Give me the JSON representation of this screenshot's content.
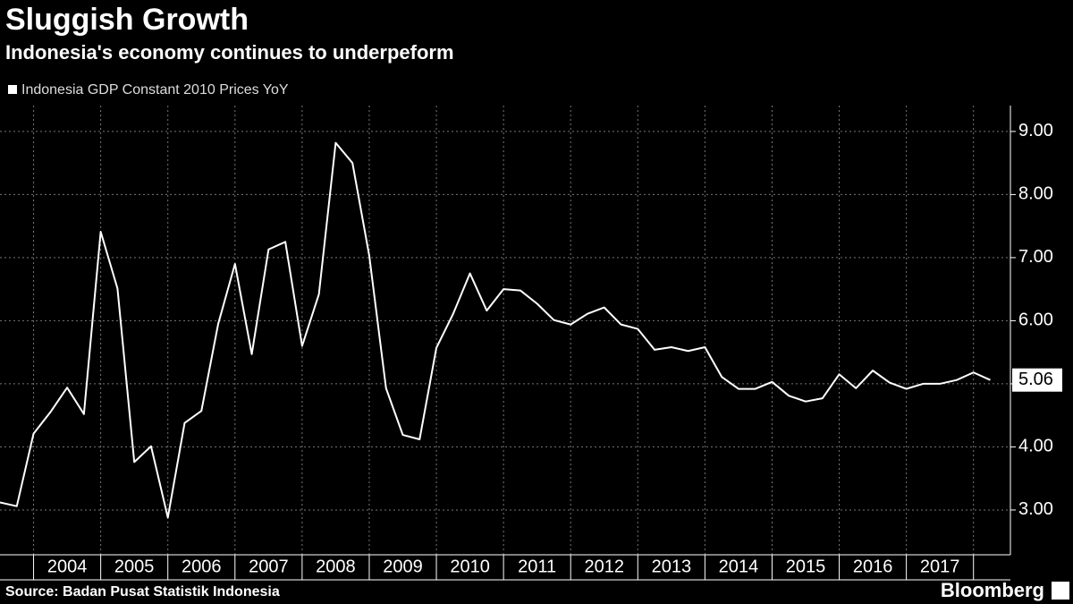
{
  "chart_data": {
    "type": "line",
    "title": "Sluggish Growth",
    "subtitle": "Indonesia's economy continues to underpeform",
    "source": "Source: Badan Pusat Statistik Indonesia",
    "brand": "Bloomberg",
    "x": [
      2003.5,
      2003.75,
      2004.0,
      2004.25,
      2004.5,
      2004.75,
      2005.0,
      2005.25,
      2005.5,
      2005.75,
      2006.0,
      2006.25,
      2006.5,
      2006.75,
      2007.0,
      2007.25,
      2007.5,
      2007.75,
      2008.0,
      2008.25,
      2008.5,
      2008.75,
      2009.0,
      2009.25,
      2009.5,
      2009.75,
      2010.0,
      2010.25,
      2010.5,
      2010.75,
      2011.0,
      2011.25,
      2011.5,
      2011.75,
      2012.0,
      2012.25,
      2012.5,
      2012.75,
      2013.0,
      2013.25,
      2013.5,
      2013.75,
      2014.0,
      2014.25,
      2014.5,
      2014.75,
      2015.0,
      2015.25,
      2015.5,
      2015.75,
      2016.0,
      2016.25,
      2016.5,
      2016.75,
      2017.0,
      2017.25,
      2017.5,
      2017.75,
      2018.0,
      2018.25
    ],
    "series": [
      {
        "name": "Indonesia GDP Constant 2010 Prices YoY",
        "color": "#ffffff",
        "values": [
          3.12,
          3.06,
          4.21,
          4.55,
          4.94,
          4.52,
          7.41,
          6.51,
          3.76,
          4.01,
          2.88,
          4.38,
          4.57,
          5.95,
          6.9,
          5.47,
          7.13,
          7.25,
          5.6,
          6.42,
          8.82,
          8.5,
          7.03,
          4.93,
          4.19,
          4.12,
          5.57,
          6.11,
          6.75,
          6.16,
          6.5,
          6.48,
          6.27,
          6.01,
          5.94,
          6.11,
          6.21,
          5.94,
          5.87,
          5.54,
          5.58,
          5.52,
          5.58,
          5.11,
          4.92,
          4.92,
          5.03,
          4.81,
          4.72,
          4.77,
          5.15,
          4.93,
          5.21,
          5.02,
          4.92,
          5.0,
          5.0,
          5.06,
          5.18,
          5.06
        ]
      }
    ],
    "xlim": [
      2003.5,
      2018.55
    ],
    "xticks": [
      2004,
      2005,
      2006,
      2007,
      2008,
      2009,
      2010,
      2011,
      2012,
      2013,
      2014,
      2015,
      2016,
      2017
    ],
    "ylim": [
      2.29,
      9.41
    ],
    "yticks": [
      {
        "value": 3,
        "label": "3.00"
      },
      {
        "value": 4,
        "label": "4.00"
      },
      {
        "value": 5,
        "label": "5.00"
      },
      {
        "value": 6,
        "label": "6.00"
      },
      {
        "value": 7,
        "label": "7.00"
      },
      {
        "value": 8,
        "label": "8.00"
      },
      {
        "value": 9,
        "label": "9.00"
      }
    ],
    "grid": true,
    "legend": "top-left"
  }
}
